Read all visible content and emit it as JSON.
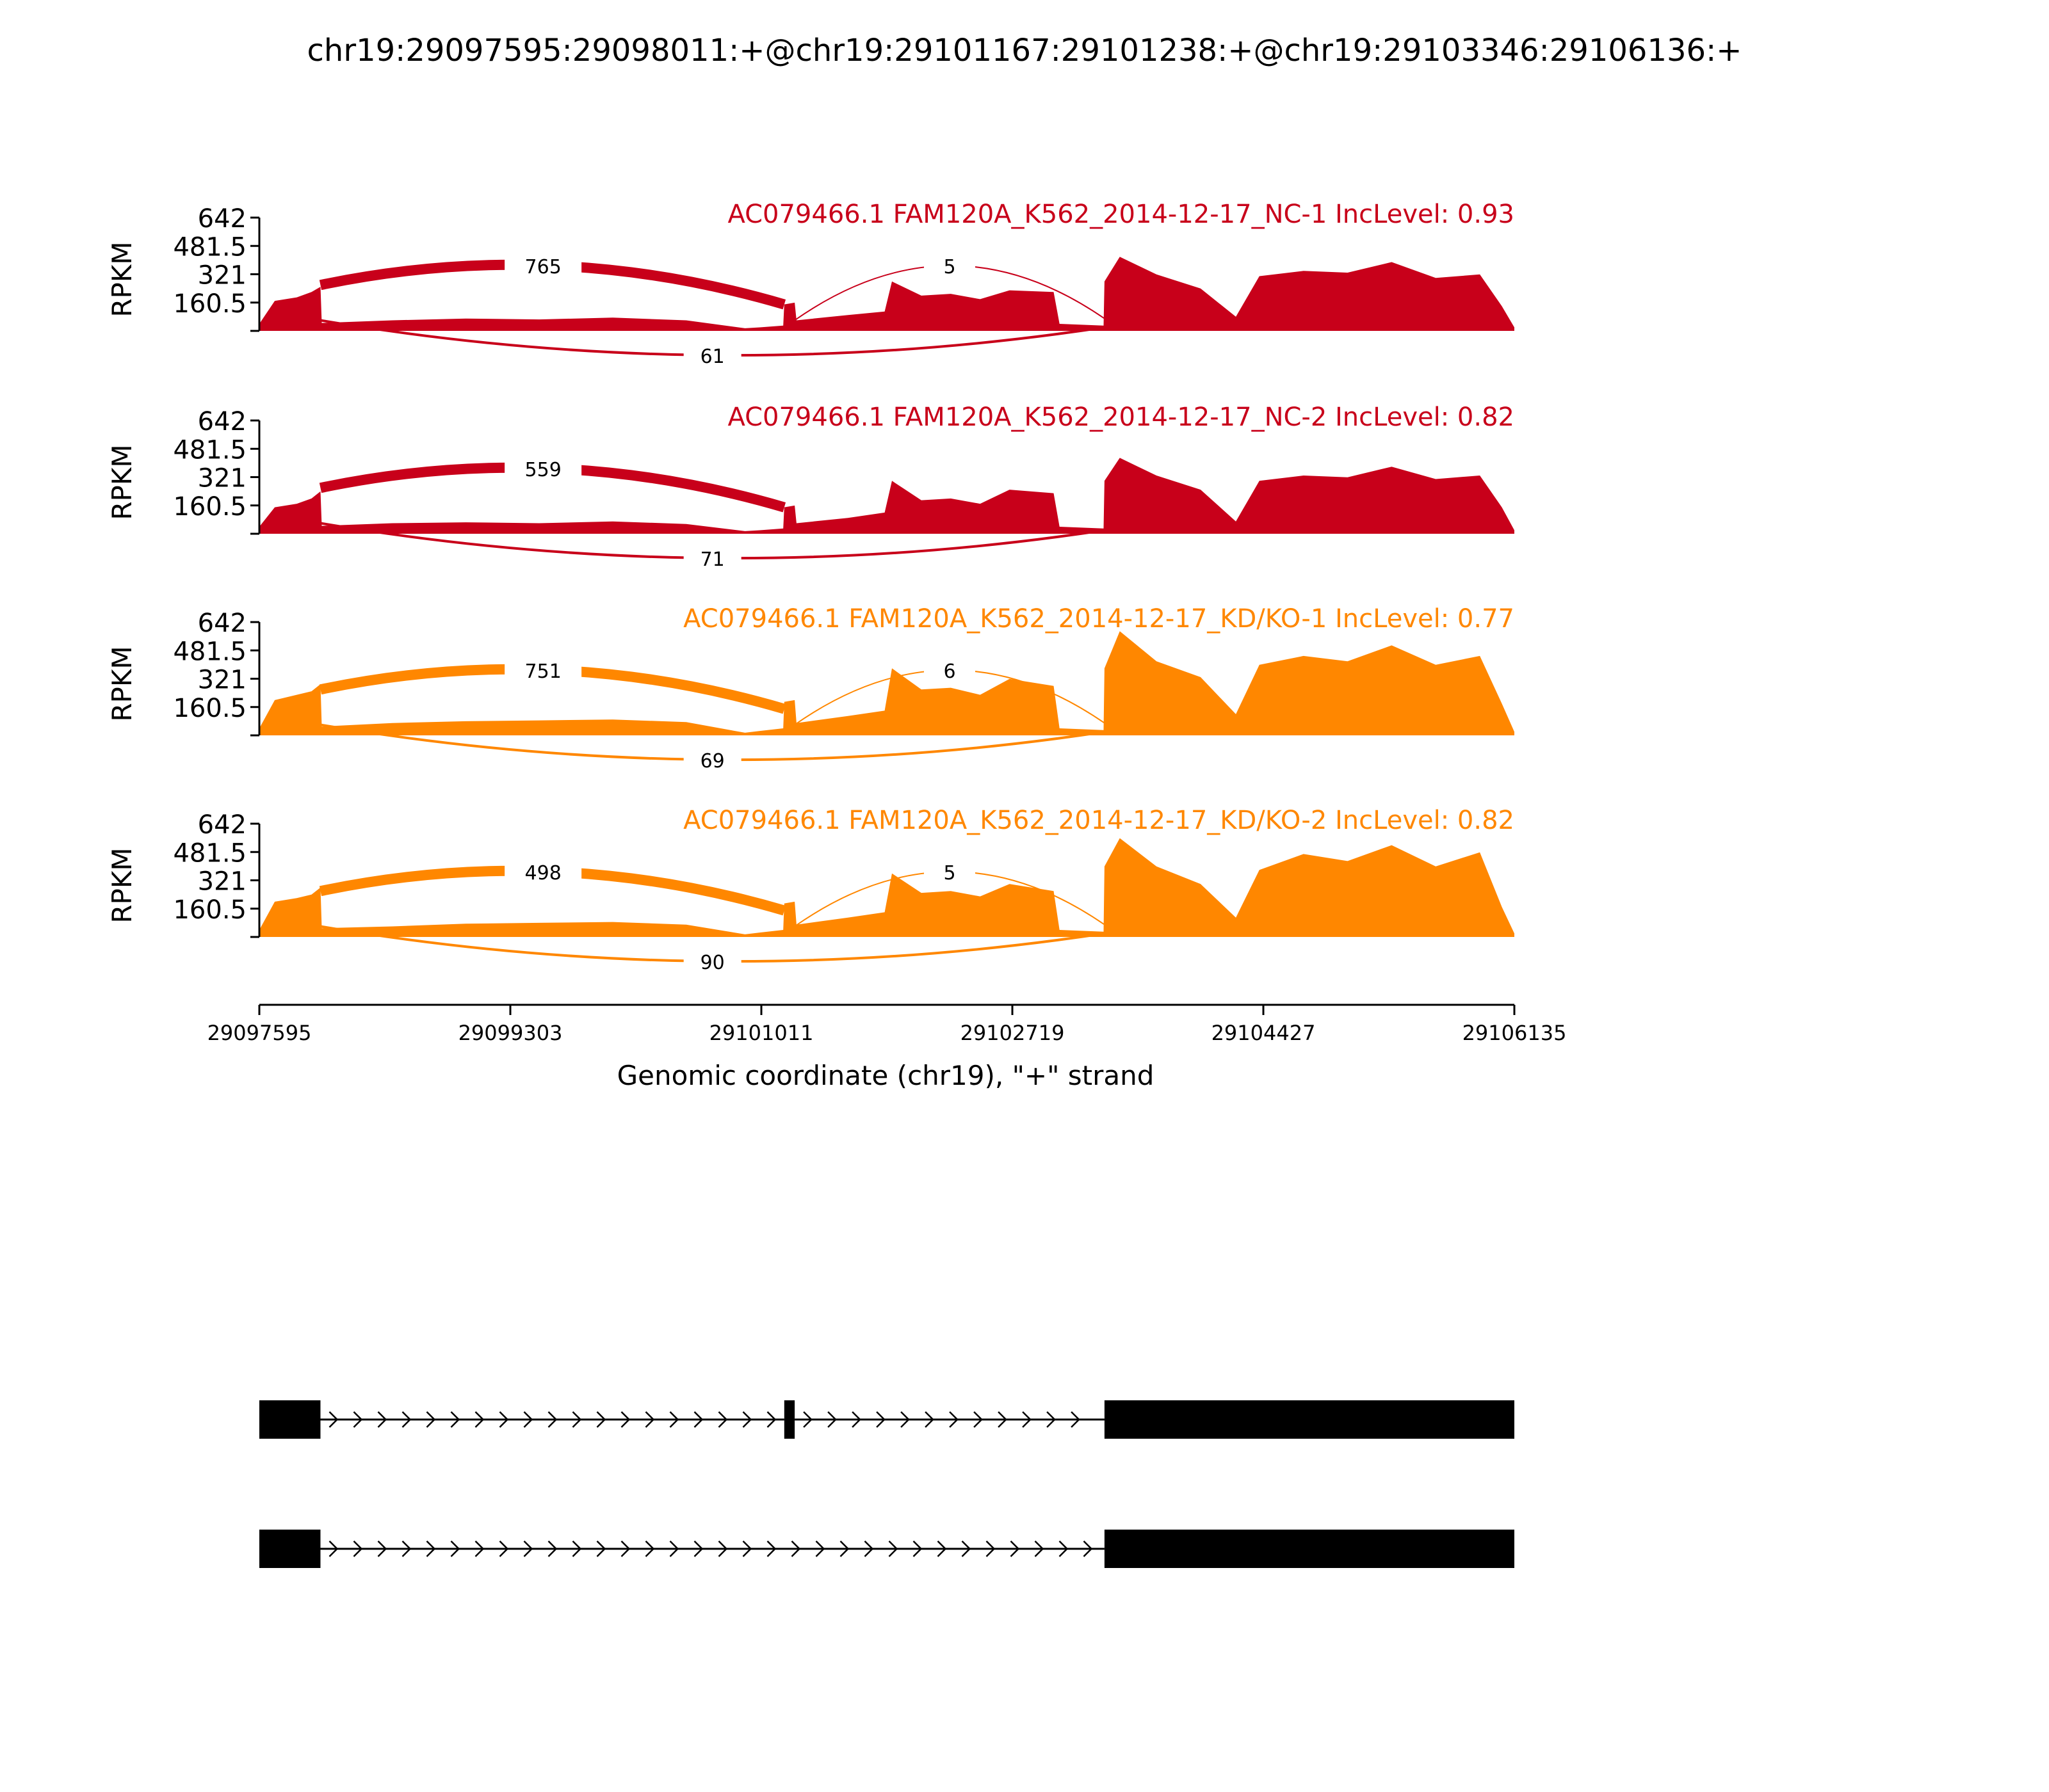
{
  "chart_data": {
    "type": "area",
    "title": "chr19:29097595:29098011:+@chr19:29101167:29101238:+@chr19:29103346:29106136:+",
    "xlabel": "Genomic coordinate (chr19), \"+\" strand",
    "ylabel": "RPKM",
    "xlim": [
      29097595,
      29106135
    ],
    "ylim": [
      0,
      642
    ],
    "x_ticks": [
      "29097595",
      "29099303",
      "29101011",
      "29102719",
      "29104427",
      "29106135"
    ],
    "y_ticks": [
      "642",
      "481.5",
      "321",
      "160.5"
    ],
    "grid": false,
    "exons": [
      {
        "start": 29097595,
        "end": 29098011
      },
      {
        "start": 29101167,
        "end": 29101238
      },
      {
        "start": 29103346,
        "end": 29106136
      }
    ],
    "colors": {
      "nc": "#c8001a",
      "kd": "#ff8700",
      "structure": "#000000",
      "axis": "#000000"
    },
    "series": [
      {
        "name": "AC079466.1 FAM120A_K562_2014-12-17_NC-1 IncLevel: 0.93",
        "group": "nc",
        "junctions": {
          "inclusion_left": "765",
          "inclusion_right": "5",
          "skipping": "61"
        },
        "profile": [
          [
            29097595,
            40
          ],
          [
            29097700,
            170
          ],
          [
            29097850,
            190
          ],
          [
            29097950,
            220
          ],
          [
            29098011,
            250
          ],
          [
            29098020,
            45
          ],
          [
            29098500,
            60
          ],
          [
            29099000,
            70
          ],
          [
            29099500,
            65
          ],
          [
            29100000,
            75
          ],
          [
            29100500,
            60
          ],
          [
            29100900,
            15
          ],
          [
            29101000,
            20
          ],
          [
            29101160,
            30
          ],
          [
            29101167,
            150
          ],
          [
            29101238,
            160
          ],
          [
            29101250,
            60
          ],
          [
            29101600,
            90
          ],
          [
            29101850,
            110
          ],
          [
            29101900,
            280
          ],
          [
            29102100,
            200
          ],
          [
            29102300,
            210
          ],
          [
            29102500,
            180
          ],
          [
            29102700,
            230
          ],
          [
            29103000,
            220
          ],
          [
            29103040,
            40
          ],
          [
            29103340,
            30
          ],
          [
            29103346,
            280
          ],
          [
            29103450,
            420
          ],
          [
            29103700,
            320
          ],
          [
            29104000,
            240
          ],
          [
            29104240,
            80
          ],
          [
            29104400,
            310
          ],
          [
            29104700,
            340
          ],
          [
            29105000,
            330
          ],
          [
            29105300,
            390
          ],
          [
            29105600,
            300
          ],
          [
            29105900,
            320
          ],
          [
            29106050,
            140
          ],
          [
            29106135,
            20
          ]
        ]
      },
      {
        "name": "AC079466.1 FAM120A_K562_2014-12-17_NC-2 IncLevel: 0.82",
        "group": "nc",
        "junctions": {
          "inclusion_left": "559",
          "inclusion_right": "",
          "skipping": "71"
        },
        "profile": [
          [
            29097595,
            40
          ],
          [
            29097700,
            150
          ],
          [
            29097850,
            170
          ],
          [
            29097950,
            200
          ],
          [
            29098011,
            240
          ],
          [
            29098020,
            45
          ],
          [
            29098500,
            60
          ],
          [
            29099000,
            65
          ],
          [
            29099500,
            60
          ],
          [
            29100000,
            70
          ],
          [
            29100500,
            55
          ],
          [
            29100900,
            15
          ],
          [
            29101000,
            20
          ],
          [
            29101160,
            30
          ],
          [
            29101167,
            150
          ],
          [
            29101238,
            160
          ],
          [
            29101250,
            60
          ],
          [
            29101600,
            90
          ],
          [
            29101850,
            120
          ],
          [
            29101900,
            300
          ],
          [
            29102100,
            190
          ],
          [
            29102300,
            200
          ],
          [
            29102500,
            170
          ],
          [
            29102700,
            250
          ],
          [
            29103000,
            230
          ],
          [
            29103040,
            40
          ],
          [
            29103340,
            30
          ],
          [
            29103346,
            300
          ],
          [
            29103450,
            430
          ],
          [
            29103700,
            330
          ],
          [
            29104000,
            250
          ],
          [
            29104240,
            70
          ],
          [
            29104400,
            300
          ],
          [
            29104700,
            330
          ],
          [
            29105000,
            320
          ],
          [
            29105300,
            380
          ],
          [
            29105600,
            310
          ],
          [
            29105900,
            330
          ],
          [
            29106050,
            150
          ],
          [
            29106135,
            20
          ]
        ]
      },
      {
        "name": "AC079466.1 FAM120A_K562_2014-12-17_KD/KO-1 IncLevel: 0.77",
        "group": "kd",
        "junctions": {
          "inclusion_left": "751",
          "inclusion_right": "6",
          "skipping": "69"
        },
        "profile": [
          [
            29097595,
            40
          ],
          [
            29097700,
            200
          ],
          [
            29097850,
            230
          ],
          [
            29097950,
            250
          ],
          [
            29098011,
            290
          ],
          [
            29098020,
            50
          ],
          [
            29098500,
            70
          ],
          [
            29099000,
            80
          ],
          [
            29099500,
            85
          ],
          [
            29100000,
            90
          ],
          [
            29100500,
            75
          ],
          [
            29100900,
            15
          ],
          [
            29101000,
            25
          ],
          [
            29101160,
            40
          ],
          [
            29101167,
            190
          ],
          [
            29101238,
            200
          ],
          [
            29101250,
            70
          ],
          [
            29101600,
            110
          ],
          [
            29101850,
            140
          ],
          [
            29101900,
            380
          ],
          [
            29102100,
            260
          ],
          [
            29102300,
            270
          ],
          [
            29102500,
            230
          ],
          [
            29102700,
            320
          ],
          [
            29103000,
            280
          ],
          [
            29103040,
            40
          ],
          [
            29103340,
            30
          ],
          [
            29103346,
            380
          ],
          [
            29103450,
            590
          ],
          [
            29103700,
            420
          ],
          [
            29104000,
            330
          ],
          [
            29104240,
            120
          ],
          [
            29104400,
            400
          ],
          [
            29104700,
            450
          ],
          [
            29105000,
            420
          ],
          [
            29105300,
            510
          ],
          [
            29105600,
            400
          ],
          [
            29105900,
            450
          ],
          [
            29106050,
            180
          ],
          [
            29106135,
            20
          ]
        ]
      },
      {
        "name": "AC079466.1 FAM120A_K562_2014-12-17_KD/KO-2 IncLevel: 0.82",
        "group": "kd",
        "junctions": {
          "inclusion_left": "498",
          "inclusion_right": "5",
          "skipping": "90"
        },
        "profile": [
          [
            29097595,
            40
          ],
          [
            29097700,
            200
          ],
          [
            29097850,
            220
          ],
          [
            29097950,
            240
          ],
          [
            29098011,
            280
          ],
          [
            29098020,
            50
          ],
          [
            29098500,
            60
          ],
          [
            29099000,
            75
          ],
          [
            29099500,
            80
          ],
          [
            29100000,
            85
          ],
          [
            29100500,
            70
          ],
          [
            29100900,
            15
          ],
          [
            29101000,
            25
          ],
          [
            29101160,
            40
          ],
          [
            29101167,
            190
          ],
          [
            29101238,
            200
          ],
          [
            29101250,
            70
          ],
          [
            29101600,
            110
          ],
          [
            29101850,
            140
          ],
          [
            29101900,
            360
          ],
          [
            29102100,
            250
          ],
          [
            29102300,
            260
          ],
          [
            29102500,
            230
          ],
          [
            29102700,
            300
          ],
          [
            29103000,
            260
          ],
          [
            29103040,
            40
          ],
          [
            29103340,
            30
          ],
          [
            29103346,
            400
          ],
          [
            29103450,
            560
          ],
          [
            29103700,
            400
          ],
          [
            29104000,
            300
          ],
          [
            29104240,
            110
          ],
          [
            29104400,
            380
          ],
          [
            29104700,
            470
          ],
          [
            29105000,
            430
          ],
          [
            29105300,
            520
          ],
          [
            29105600,
            400
          ],
          [
            29105900,
            480
          ],
          [
            29106050,
            170
          ],
          [
            29106135,
            20
          ]
        ]
      }
    ],
    "isoforms": [
      {
        "exons": [
          0,
          1,
          2
        ]
      },
      {
        "exons": [
          0,
          2
        ]
      }
    ]
  }
}
